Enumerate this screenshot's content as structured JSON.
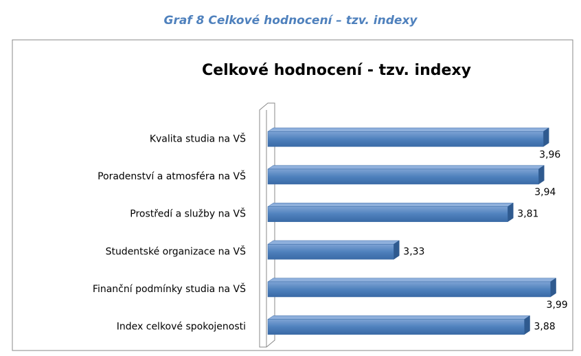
{
  "caption": "Graf 8 Celkové hodnocení – tzv. indexy",
  "chart_data": {
    "type": "bar",
    "orientation": "horizontal",
    "title": "Celkové hodnocení - tzv. indexy",
    "categories": [
      "Kvalita studia na VŠ",
      "Poradenství a atmosféra na VŠ",
      "Prostředí a služby na VŠ",
      "Studentské organizace na VŠ",
      "Finanční podmínky studia na VŠ",
      "Index celkové spokojenosti"
    ],
    "values": [
      3.96,
      3.94,
      3.81,
      3.33,
      3.99,
      3.88
    ],
    "value_labels": [
      "3,96",
      "3,94",
      "3,81",
      "3,33",
      "3,99",
      "3,88"
    ],
    "color": "#4f81bd",
    "xlim": [
      2.8,
      4.0
    ]
  }
}
